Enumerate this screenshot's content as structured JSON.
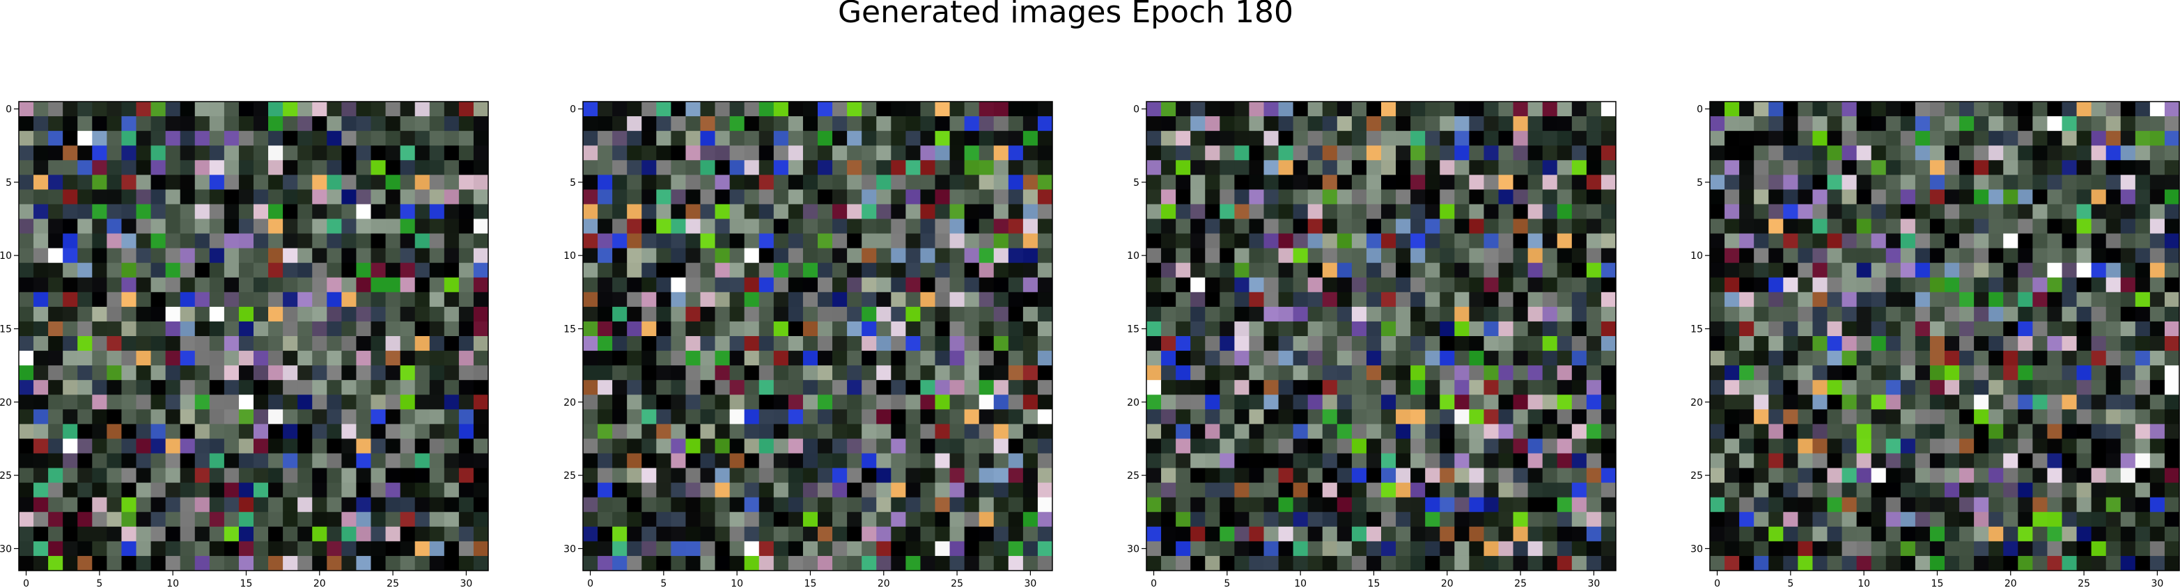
{
  "figure": {
    "title": "Generated images Epoch 180"
  },
  "chart_data": [
    {
      "type": "heatmap",
      "title": "",
      "rows": 32,
      "cols": 32,
      "x_ticks": [
        0,
        5,
        10,
        15,
        20,
        25,
        30
      ],
      "y_ticks": [
        0,
        5,
        10,
        15,
        20,
        25,
        30
      ],
      "xlim": [
        -0.5,
        31.5
      ],
      "ylim": [
        31.5,
        -0.5
      ],
      "grid": false,
      "pixels": "generated RGB image (32x32), values not labeled"
    },
    {
      "type": "heatmap",
      "title": "",
      "rows": 32,
      "cols": 32,
      "x_ticks": [
        0,
        5,
        10,
        15,
        20,
        25,
        30
      ],
      "y_ticks": [
        0,
        5,
        10,
        15,
        20,
        25,
        30
      ],
      "xlim": [
        -0.5,
        31.5
      ],
      "ylim": [
        31.5,
        -0.5
      ],
      "grid": false,
      "pixels": "generated RGB image (32x32), values not labeled"
    },
    {
      "type": "heatmap",
      "title": "",
      "rows": 32,
      "cols": 32,
      "x_ticks": [
        0,
        5,
        10,
        15,
        20,
        25,
        30
      ],
      "y_ticks": [
        0,
        5,
        10,
        15,
        20,
        25,
        30
      ],
      "xlim": [
        -0.5,
        31.5
      ],
      "ylim": [
        31.5,
        -0.5
      ],
      "grid": false,
      "pixels": "generated RGB image (32x32), values not labeled"
    },
    {
      "type": "heatmap",
      "title": "",
      "rows": 32,
      "cols": 32,
      "x_ticks": [
        0,
        5,
        10,
        15,
        20,
        25,
        30
      ],
      "y_ticks": [
        0,
        5,
        10,
        15,
        20,
        25,
        30
      ],
      "xlim": [
        -0.5,
        31.5
      ],
      "ylim": [
        31.5,
        -0.5
      ],
      "grid": false,
      "pixels": "generated RGB image (32x32), values not labeled"
    }
  ]
}
